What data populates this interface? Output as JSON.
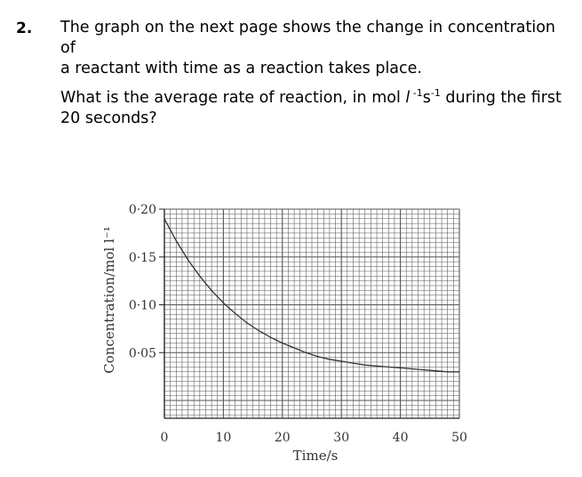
{
  "question": {
    "number": "2.",
    "intro_line1": "The graph on the next page shows the change in concentration of",
    "intro_line2": "a reactant with time as a reaction takes place.",
    "ask_part1": "What is the average rate of reaction, in mol ",
    "ask_l": "l",
    "ask_exp1": " -1",
    "ask_s": "s",
    "ask_exp2": "-1",
    "ask_part2": " during the first",
    "ask_line2": "20 seconds?"
  },
  "chart_data": {
    "type": "line",
    "xlabel": "Time/s",
    "ylabel": "Concentration/mol l⁻¹",
    "xlim": [
      0,
      50
    ],
    "ylim": [
      0,
      0.2
    ],
    "x_ticks": [
      0,
      10,
      20,
      30,
      40,
      50
    ],
    "x_tick_labels": [
      "0",
      "10",
      "20",
      "30",
      "40",
      "50"
    ],
    "y_ticks": [
      0.05,
      0.1,
      0.15,
      0.2
    ],
    "y_tick_labels": [
      "0·05",
      "0·10",
      "0·15",
      "0·20"
    ],
    "grid": true,
    "series": [
      {
        "x": [
          0,
          2,
          4,
          6,
          8,
          10,
          12,
          14,
          16,
          18,
          20,
          22,
          24,
          26,
          28,
          30,
          32,
          34,
          36,
          38,
          40,
          42,
          44,
          46,
          48,
          50
        ],
        "y": [
          0.19,
          0.167,
          0.147,
          0.13,
          0.115,
          0.102,
          0.091,
          0.081,
          0.073,
          0.066,
          0.06,
          0.055,
          0.05,
          0.046,
          0.043,
          0.041,
          0.039,
          0.037,
          0.036,
          0.035,
          0.034,
          0.033,
          0.032,
          0.031,
          0.03,
          0.03
        ]
      }
    ]
  },
  "colors": {
    "text": "#000000",
    "grid": "#555555",
    "curve": "#333333"
  }
}
